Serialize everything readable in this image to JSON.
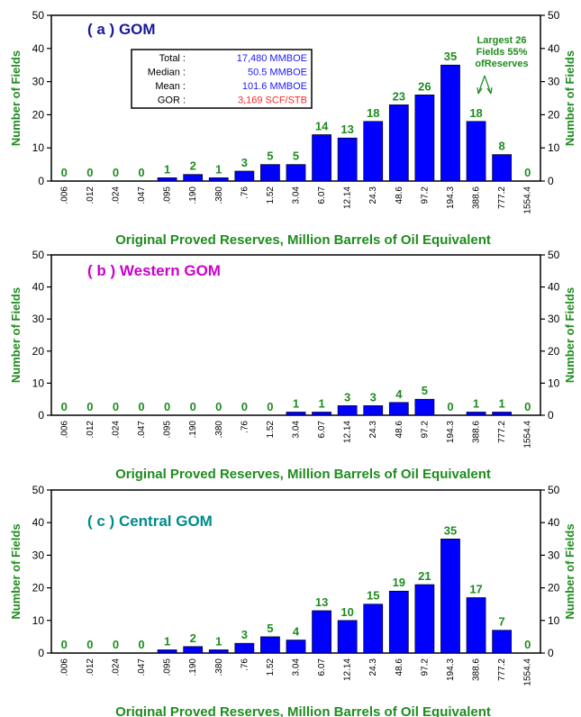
{
  "colors": {
    "bar": "#0000ff",
    "green_text": "#1e8c1e",
    "title_a": "#1a1a9a",
    "title_b": "#cc00cc",
    "title_c": "#008b8b",
    "stat_value": "#1a1aff",
    "stat_value_gor": "#ff2a2a"
  },
  "chart_data": [
    {
      "type": "bar",
      "title": "( a )  GOM",
      "xlabel": "Original Proved Reserves, Million Barrels of Oil Equivalent",
      "ylabel": "Number of Fields",
      "ylim": [
        0,
        50
      ],
      "yticks": [
        0,
        10,
        20,
        30,
        40,
        50
      ],
      "categories": [
        ".006",
        ".012",
        ".024",
        ".047",
        ".095",
        ".190",
        ".380",
        ".76",
        "1.52",
        "3.04",
        "6.07",
        "12.14",
        "24.3",
        "48.6",
        "97.2",
        "194.3",
        "388.6",
        "777.2",
        "1554.4"
      ],
      "values": [
        0,
        0,
        0,
        0,
        1,
        2,
        1,
        3,
        5,
        5,
        14,
        13,
        18,
        23,
        26,
        35,
        18,
        8,
        0
      ],
      "stats": [
        {
          "label": "Total :",
          "value": "17,480 MMBOE"
        },
        {
          "label": "Median :",
          "value": "50.5 MMBOE"
        },
        {
          "label": "Mean :",
          "value": "101.6 MMBOE"
        },
        {
          "label": "GOR :",
          "value": "3,169 SCF/STB"
        }
      ],
      "annotation": [
        "Largest 26",
        "Fields 55%",
        "ofReserves"
      ]
    },
    {
      "type": "bar",
      "title": "( b ) Western GOM",
      "xlabel": "Original Proved Reserves, Million Barrels of Oil Equivalent",
      "ylabel": "Number of Fields",
      "ylim": [
        0,
        50
      ],
      "yticks": [
        0,
        10,
        20,
        30,
        40,
        50
      ],
      "categories": [
        ".006",
        ".012",
        ".024",
        ".047",
        ".095",
        ".190",
        ".380",
        ".76",
        "1.52",
        "3.04",
        "6.07",
        "12.14",
        "24.3",
        "48.6",
        "97.2",
        "194.3",
        "388.6",
        "777.2",
        "1554.4"
      ],
      "values": [
        0,
        0,
        0,
        0,
        0,
        0,
        0,
        0,
        0,
        1,
        1,
        3,
        3,
        4,
        5,
        0,
        1,
        1,
        0
      ]
    },
    {
      "type": "bar",
      "title": "( c ) Central GOM",
      "xlabel": "Original Proved Reserves, Million Barrels of Oil Equivalent",
      "ylabel": "Number of Fields",
      "ylim": [
        0,
        50
      ],
      "yticks": [
        0,
        10,
        20,
        30,
        40,
        50
      ],
      "categories": [
        ".006",
        ".012",
        ".024",
        ".047",
        ".095",
        ".190",
        ".380",
        ".76",
        "1.52",
        "3.04",
        "6.07",
        "12.14",
        "24.3",
        "48.6",
        "97.2",
        "194.3",
        "388.6",
        "777.2",
        "1554.4"
      ],
      "values": [
        0,
        0,
        0,
        0,
        1,
        2,
        1,
        3,
        5,
        4,
        13,
        10,
        15,
        19,
        21,
        35,
        17,
        7,
        0
      ]
    }
  ]
}
